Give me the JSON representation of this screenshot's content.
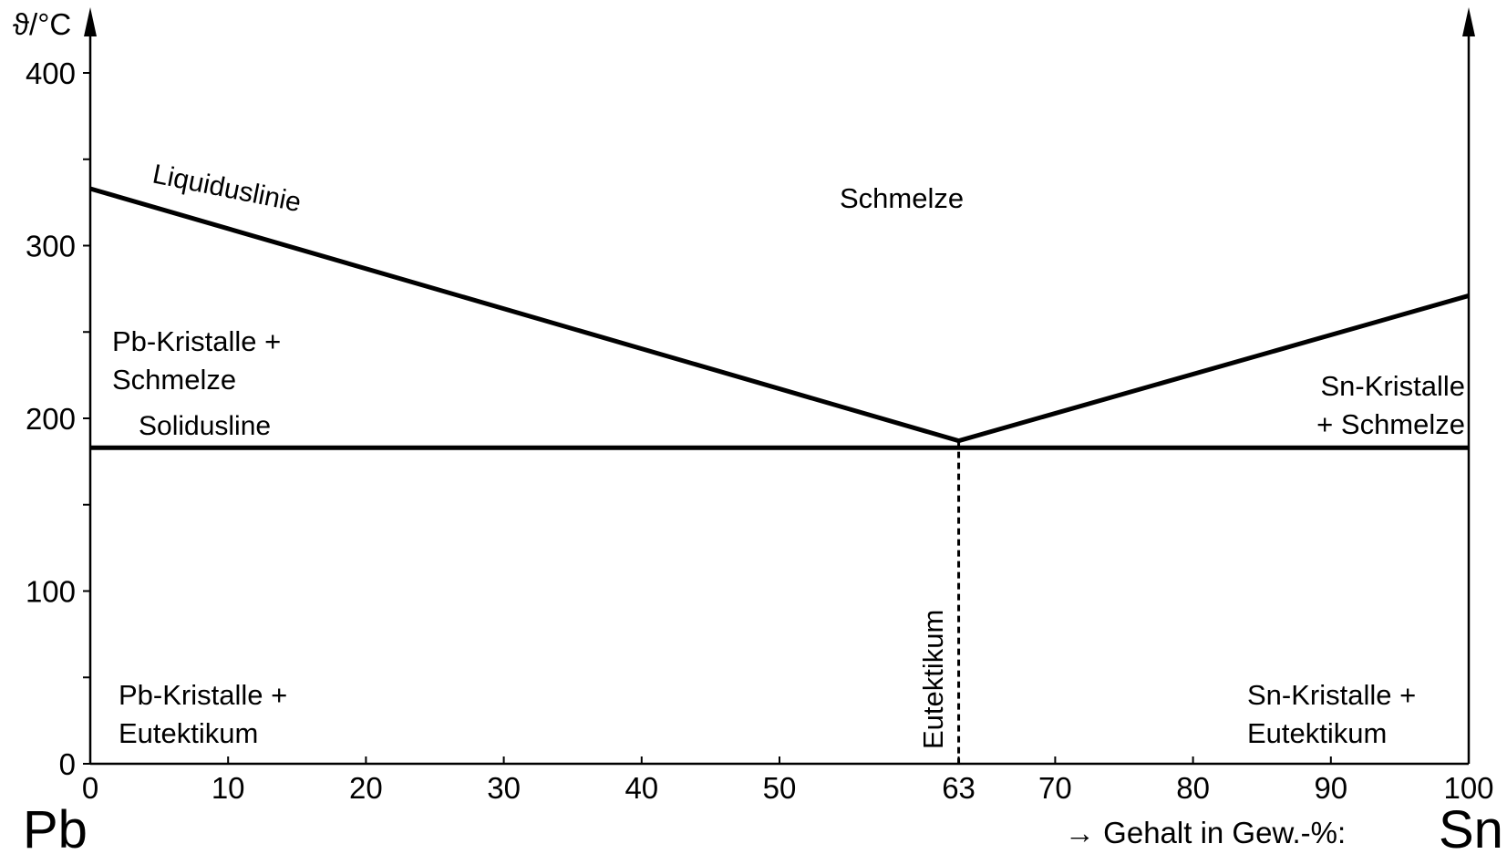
{
  "chart_data": {
    "type": "line",
    "title": "",
    "xlabel": "→ Gehalt in Gew.-%:",
    "ylabel": "ϑ/°C",
    "xlim": [
      0,
      100
    ],
    "ylim": [
      0,
      400
    ],
    "x_ticks": [
      0,
      10,
      20,
      30,
      40,
      50,
      63,
      70,
      80,
      90,
      100
    ],
    "y_ticks": [
      0,
      100,
      200,
      300,
      400
    ],
    "left_element": "Pb",
    "right_element": "Sn",
    "series": [
      {
        "name": "Liquiduslinie",
        "x": [
          0,
          63,
          100
        ],
        "y": [
          333,
          187,
          271
        ]
      },
      {
        "name": "Solidusline",
        "x": [
          0,
          100
        ],
        "y": [
          183,
          183
        ]
      }
    ],
    "eutectic": {
      "label": "Eutektikum",
      "x": 63,
      "y": 187
    },
    "labels": {
      "liquidus": "Liquiduslinie",
      "solidus": "Solidusline",
      "melt": "Schmelze",
      "pb_melt_1": "Pb-Kristalle +",
      "pb_melt_2": "Schmelze",
      "sn_melt_1": "Sn-Kristalle",
      "sn_melt_2": "+ Schmelze",
      "pb_eut_1": "Pb-Kristalle +",
      "pb_eut_2": "Eutektikum",
      "sn_eut_1": "Sn-Kristalle +",
      "sn_eut_2": "Eutektikum"
    }
  }
}
